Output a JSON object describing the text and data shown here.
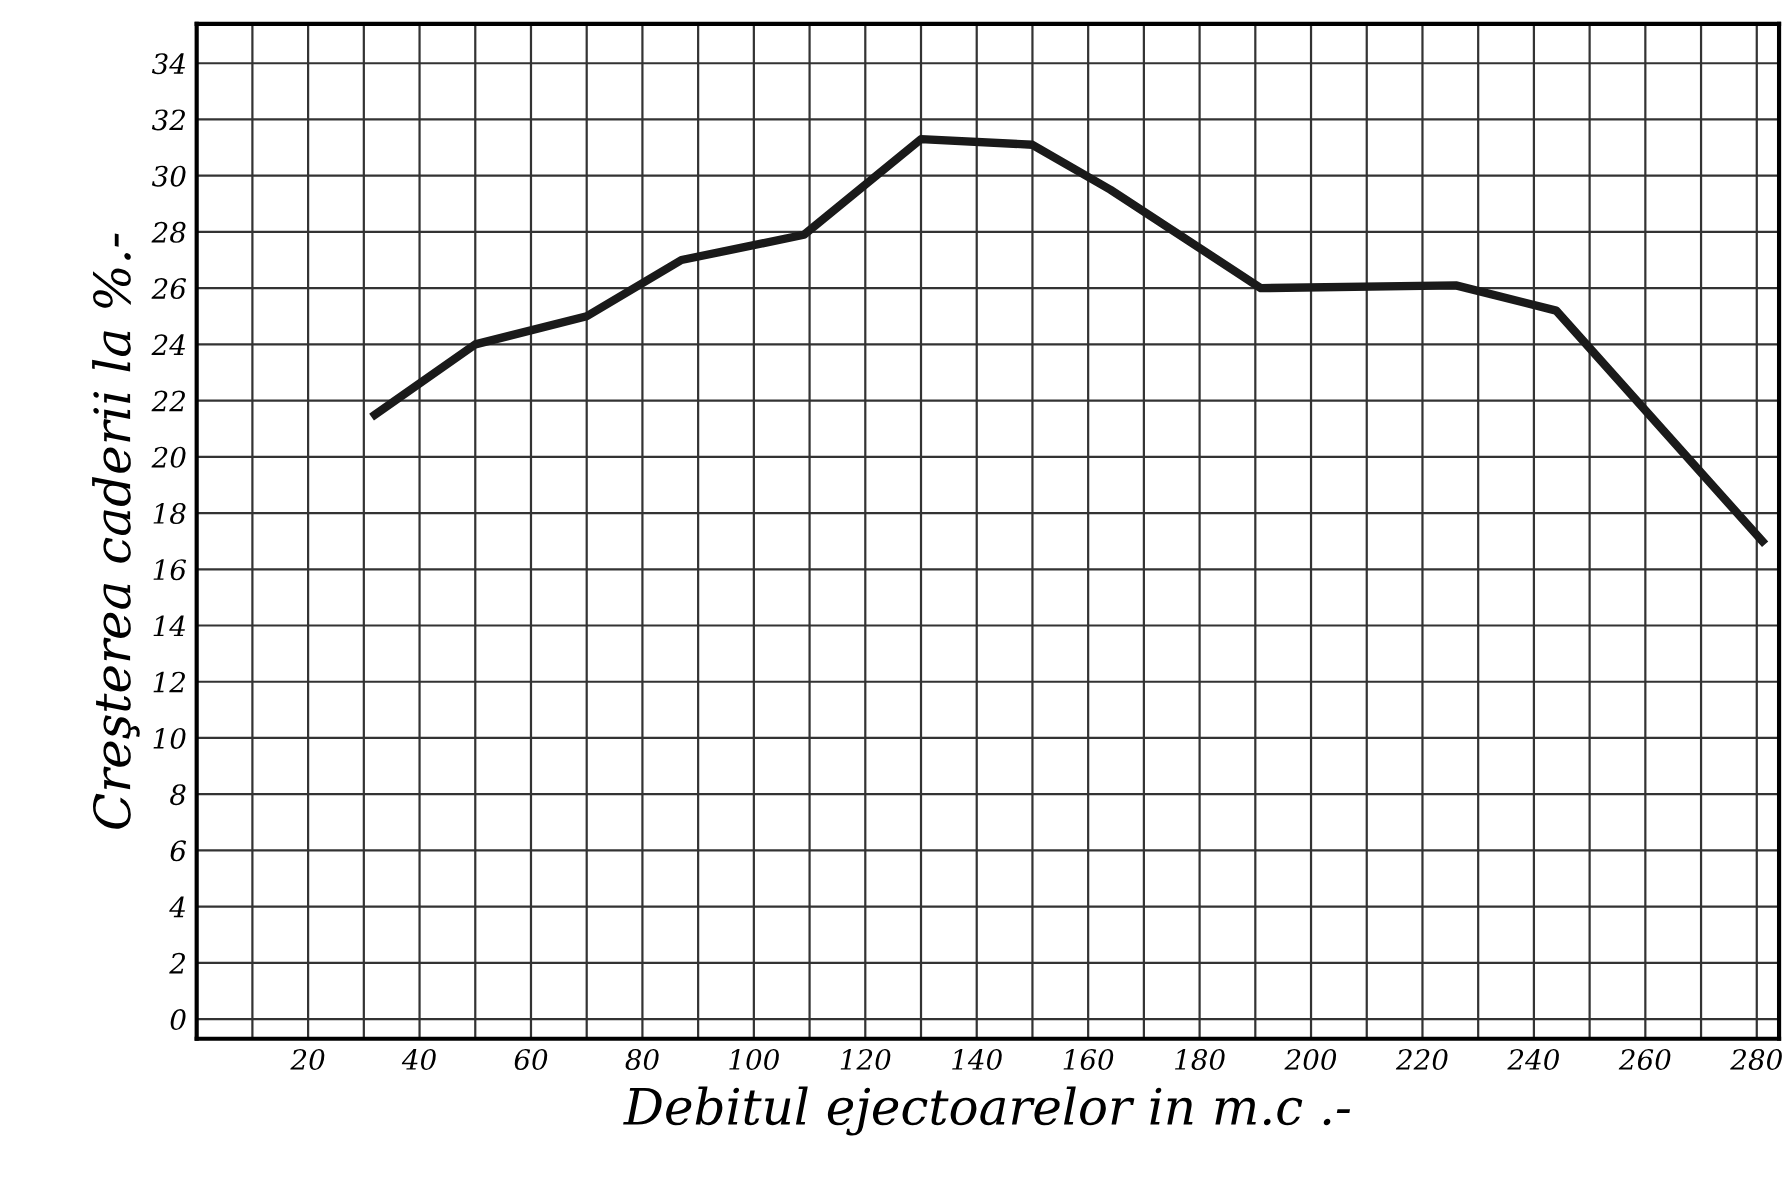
{
  "chart_data": {
    "type": "line",
    "xlabel": "Debitul ejectoarelor in m.c .-",
    "ylabel": "Creşterea caderii la %.-",
    "x": [
      32,
      50,
      70,
      87,
      109,
      130,
      150,
      164,
      191,
      226,
      244,
      281
    ],
    "series": [
      {
        "color": "#1a1a1a",
        "values": [
          21.5,
          24,
          25,
          27,
          27.9,
          31.3,
          31.1,
          29.5,
          26,
          26.1,
          25.2,
          17
        ]
      }
    ],
    "xlim": [
      0,
      284
    ],
    "ylim": [
      -0.7,
      35.4
    ],
    "xticks": [
      {
        "value": 10,
        "label": null
      },
      20,
      {
        "value": 30,
        "label": null
      },
      40,
      {
        "value": 50,
        "label": null
      },
      60,
      {
        "value": 70,
        "label": null
      },
      80,
      {
        "value": 90,
        "label": null
      },
      100,
      {
        "value": 110,
        "label": null
      },
      120,
      {
        "value": 130,
        "label": null
      },
      140,
      {
        "value": 150,
        "label": null
      },
      160,
      {
        "value": 170,
        "label": null
      },
      180,
      {
        "value": 190,
        "label": null
      },
      200,
      {
        "value": 210,
        "label": null
      },
      220,
      {
        "value": 230,
        "label": null
      },
      240,
      {
        "value": 250,
        "label": null
      },
      260,
      {
        "value": 270,
        "label": null
      },
      280
    ],
    "yticks": [
      0,
      2,
      4,
      6,
      8,
      10,
      12,
      14,
      16,
      18,
      20,
      22,
      24,
      26,
      28,
      30,
      32,
      34
    ],
    "grid": true,
    "marker": "none",
    "line_style": "solid",
    "legend": false
  }
}
